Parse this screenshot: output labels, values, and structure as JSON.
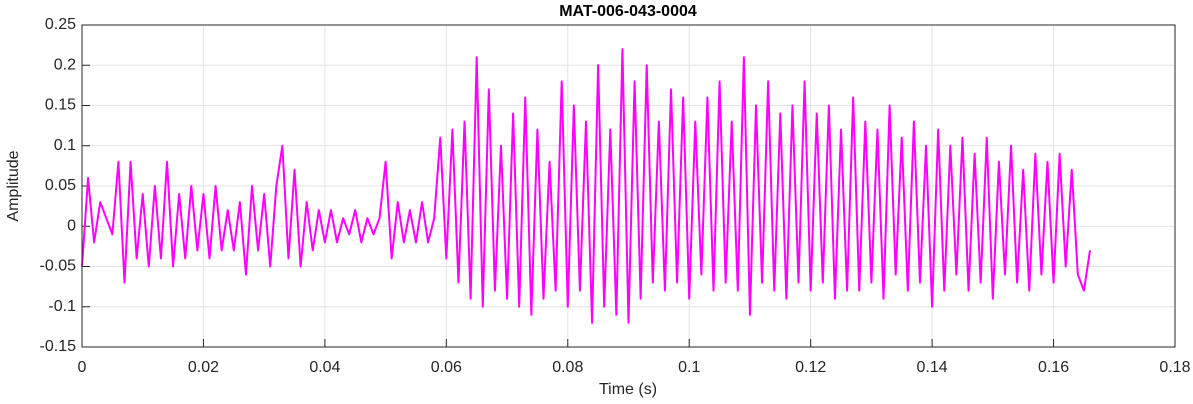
{
  "chart_data": {
    "type": "line",
    "title": "MAT-006-043-0004",
    "x_label": "Time (s)",
    "y_label": "Amplitude",
    "color": "#ff00ff",
    "grid": true,
    "xlim": [
      0,
      0.18
    ],
    "xticks": [
      0,
      0.02,
      0.04,
      0.06,
      0.08,
      0.1,
      0.12,
      0.14,
      0.16,
      0.18
    ],
    "ylim": [
      -0.15,
      0.25
    ],
    "yticks": [
      -0.15,
      -0.1,
      -0.05,
      0,
      0.05,
      0.1,
      0.15,
      0.2,
      0.25
    ],
    "x": [
      0,
      0.001,
      0.002,
      0.003,
      0.004,
      0.005,
      0.006,
      0.007,
      0.008,
      0.009,
      0.01,
      0.011,
      0.012,
      0.013,
      0.014,
      0.015,
      0.016,
      0.017,
      0.018,
      0.019,
      0.02,
      0.021,
      0.022,
      0.023,
      0.024,
      0.025,
      0.026,
      0.027,
      0.028,
      0.029,
      0.03,
      0.031,
      0.032,
      0.033,
      0.034,
      0.035,
      0.036,
      0.037,
      0.038,
      0.039,
      0.04,
      0.041,
      0.042,
      0.043,
      0.044,
      0.045,
      0.046,
      0.047,
      0.048,
      0.049,
      0.05,
      0.051,
      0.052,
      0.053,
      0.054,
      0.055,
      0.056,
      0.057,
      0.058,
      0.059,
      0.06,
      0.061,
      0.062,
      0.063,
      0.064,
      0.065,
      0.066,
      0.067,
      0.068,
      0.069,
      0.07,
      0.071,
      0.072,
      0.073,
      0.074,
      0.075,
      0.076,
      0.077,
      0.078,
      0.079,
      0.08,
      0.081,
      0.082,
      0.083,
      0.084,
      0.085,
      0.086,
      0.087,
      0.088,
      0.089,
      0.09,
      0.091,
      0.092,
      0.093,
      0.094,
      0.095,
      0.096,
      0.097,
      0.098,
      0.099,
      0.1,
      0.101,
      0.102,
      0.103,
      0.104,
      0.105,
      0.106,
      0.107,
      0.108,
      0.109,
      0.11,
      0.111,
      0.112,
      0.113,
      0.114,
      0.115,
      0.116,
      0.117,
      0.118,
      0.119,
      0.12,
      0.121,
      0.122,
      0.123,
      0.124,
      0.125,
      0.126,
      0.127,
      0.128,
      0.129,
      0.13,
      0.131,
      0.132,
      0.133,
      0.134,
      0.135,
      0.136,
      0.137,
      0.138,
      0.139,
      0.14,
      0.141,
      0.142,
      0.143,
      0.144,
      0.145,
      0.146,
      0.147,
      0.148,
      0.149,
      0.15,
      0.151,
      0.152,
      0.153,
      0.154,
      0.155,
      0.156,
      0.157,
      0.158,
      0.159,
      0.16,
      0.161,
      0.162,
      0.163,
      0.164,
      0.165,
      0.166
    ],
    "values": [
      -0.05,
      0.06,
      -0.02,
      0.03,
      0.01,
      -0.01,
      0.08,
      -0.07,
      0.08,
      -0.04,
      0.04,
      -0.05,
      0.05,
      -0.04,
      0.08,
      -0.05,
      0.04,
      -0.04,
      0.05,
      -0.03,
      0.04,
      -0.04,
      0.05,
      -0.03,
      0.02,
      -0.03,
      0.03,
      -0.06,
      0.05,
      -0.03,
      0.04,
      -0.05,
      0.05,
      0.1,
      -0.04,
      0.07,
      -0.05,
      0.03,
      -0.03,
      0.02,
      -0.02,
      0.02,
      -0.02,
      0.01,
      -0.01,
      0.02,
      -0.02,
      0.01,
      -0.01,
      0.01,
      0.08,
      -0.04,
      0.03,
      -0.02,
      0.02,
      -0.02,
      0.03,
      -0.02,
      0.01,
      0.11,
      -0.04,
      0.12,
      -0.07,
      0.13,
      -0.09,
      0.21,
      -0.1,
      0.17,
      -0.08,
      0.1,
      -0.09,
      0.14,
      -0.1,
      0.16,
      -0.11,
      0.12,
      -0.09,
      0.08,
      -0.08,
      0.18,
      -0.1,
      0.15,
      -0.08,
      0.13,
      -0.12,
      0.2,
      -0.1,
      0.12,
      -0.11,
      0.22,
      -0.12,
      0.18,
      -0.09,
      0.2,
      -0.07,
      0.13,
      -0.08,
      0.17,
      -0.07,
      0.16,
      -0.09,
      0.13,
      -0.06,
      0.16,
      -0.08,
      0.18,
      -0.07,
      0.13,
      -0.08,
      0.21,
      -0.11,
      0.15,
      -0.07,
      0.18,
      -0.08,
      0.14,
      -0.09,
      0.15,
      -0.07,
      0.18,
      -0.08,
      0.14,
      -0.07,
      0.15,
      -0.09,
      0.12,
      -0.08,
      0.16,
      -0.08,
      0.13,
      -0.07,
      0.12,
      -0.09,
      0.15,
      -0.06,
      0.11,
      -0.08,
      0.13,
      -0.07,
      0.1,
      -0.1,
      0.12,
      -0.08,
      0.1,
      -0.06,
      0.11,
      -0.08,
      0.09,
      -0.07,
      0.11,
      -0.09,
      0.08,
      -0.06,
      0.1,
      -0.07,
      0.07,
      -0.08,
      0.09,
      -0.06,
      0.08,
      -0.07,
      0.09,
      -0.05,
      0.07,
      -0.06,
      -0.08,
      -0.03
    ]
  }
}
